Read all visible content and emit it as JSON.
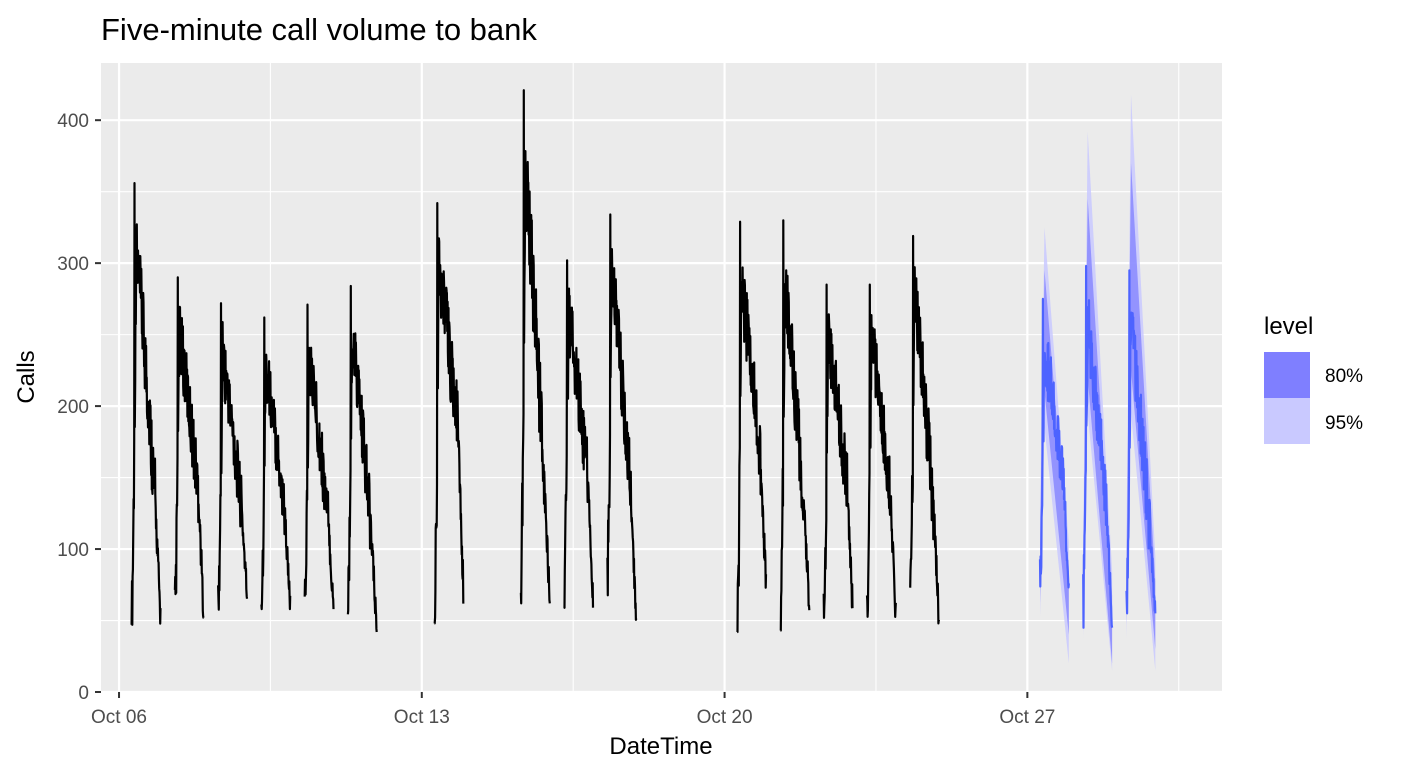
{
  "chart_data": {
    "type": "line",
    "title": "Five-minute call volume to bank",
    "xlabel": "DateTime",
    "ylabel": "Calls",
    "xlim": [
      "2003-10-05T14:00",
      "2003-10-31T12:00"
    ],
    "ylim": [
      0,
      440
    ],
    "x_ticks": [
      {
        "date": "2003-10-06",
        "label": "Oct 06"
      },
      {
        "date": "2003-10-13",
        "label": "Oct 13"
      },
      {
        "date": "2003-10-20",
        "label": "Oct 20"
      },
      {
        "date": "2003-10-27",
        "label": "Oct 27"
      }
    ],
    "y_ticks": [
      0,
      100,
      200,
      300,
      400
    ],
    "grid": true,
    "legend": {
      "title": "level",
      "position": "right",
      "entries": [
        {
          "label": "80%",
          "color": "#7f7fff"
        },
        {
          "label": "95%",
          "color": "#c9c9ff"
        }
      ]
    },
    "series": [
      {
        "role": "observed",
        "color": "#000000",
        "days": [
          {
            "date": "2003-10-06",
            "start": 47,
            "peak": 356,
            "late": 85,
            "end": 52
          },
          {
            "date": "2003-10-07",
            "start": 55,
            "peak": 290,
            "late": 88,
            "end": 52
          },
          {
            "date": "2003-10-08",
            "start": 54,
            "peak": 272,
            "late": 80,
            "end": 68
          },
          {
            "date": "2003-10-09",
            "start": 62,
            "peak": 262,
            "late": 78,
            "end": 58
          },
          {
            "date": "2003-10-10",
            "start": 60,
            "peak": 271,
            "late": 75,
            "end": 58
          },
          {
            "date": "2003-10-11",
            "start": 66,
            "peak": 284,
            "late": 70,
            "end": 42
          },
          {
            "date": "2003-10-13",
            "start": 48,
            "peak": 342,
            "late": 115,
            "end": 73
          },
          {
            "date": "2003-10-15",
            "start": 69,
            "peak": 421,
            "late": 90,
            "end": 62
          },
          {
            "date": "2003-10-16",
            "start": 73,
            "peak": 302,
            "late": 95,
            "end": 59
          },
          {
            "date": "2003-10-17",
            "start": 84,
            "peak": 334,
            "late": 85,
            "end": 47
          },
          {
            "date": "2003-10-20",
            "start": 42,
            "peak": 329,
            "late": 100,
            "end": 73
          },
          {
            "date": "2003-10-21",
            "start": 43,
            "peak": 330,
            "late": 80,
            "end": 62
          },
          {
            "date": "2003-10-22",
            "start": 47,
            "peak": 285,
            "late": 90,
            "end": 60
          },
          {
            "date": "2003-10-23",
            "start": 52,
            "peak": 285,
            "late": 85,
            "end": 52
          },
          {
            "date": "2003-10-24",
            "start": 73,
            "peak": 319,
            "late": 80,
            "end": 48
          }
        ]
      },
      {
        "role": "forecast",
        "color": "#4d63ff",
        "days": [
          {
            "date": "2003-10-27",
            "start": 75,
            "peak": 275,
            "late": 95,
            "end": 65,
            "lo80": 210,
            "hi80": 295,
            "lo95": 185,
            "hi95": 325
          },
          {
            "date": "2003-10-28",
            "start": 60,
            "peak": 298,
            "late": 80,
            "end": 45,
            "lo80": 220,
            "hi80": 345,
            "lo95": 195,
            "hi95": 392
          },
          {
            "date": "2003-10-29",
            "start": 60,
            "peak": 295,
            "late": 70,
            "end": 55,
            "lo80": 225,
            "hi80": 370,
            "lo95": 195,
            "hi95": 418
          }
        ]
      }
    ]
  }
}
